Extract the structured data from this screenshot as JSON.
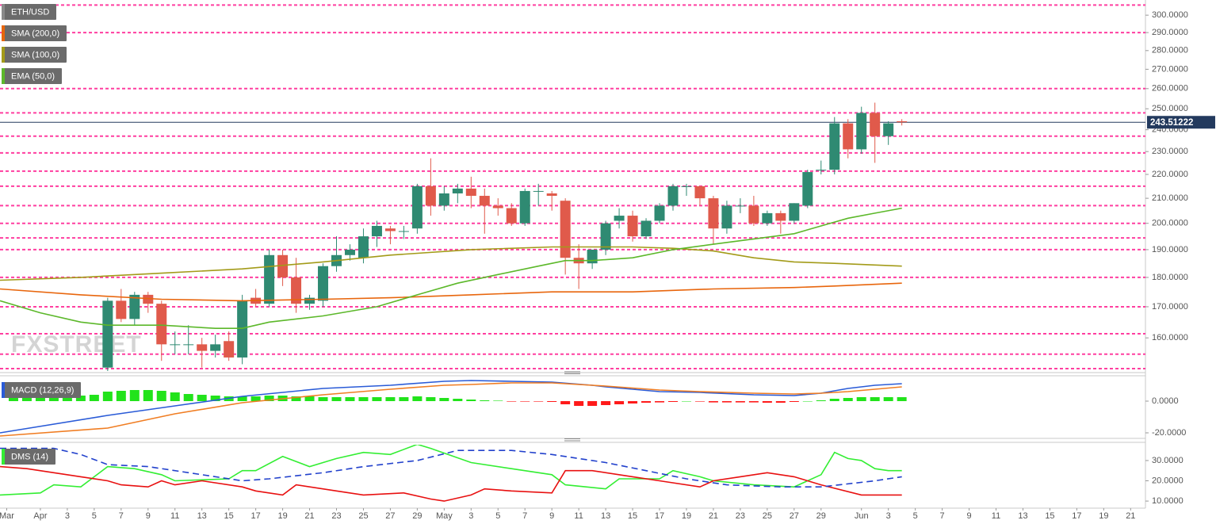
{
  "chart_data": [
    {
      "type": "candlestick",
      "name": "ETH/USD",
      "watermark": "FXSTREET",
      "log_scale": true,
      "ylim": [
        150,
        309
      ],
      "xlim": [
        -2,
        83.1
      ],
      "yticks": [
        {
          "value": 300,
          "label": "300.0000"
        },
        {
          "value": 290,
          "label": "290.0000"
        },
        {
          "value": 280,
          "label": "280.0000"
        },
        {
          "value": 270,
          "label": "270.0000"
        },
        {
          "value": 260,
          "label": "260.0000"
        },
        {
          "value": 250,
          "label": "250.0000"
        },
        {
          "value": 240,
          "label": "240.0000"
        },
        {
          "value": 230,
          "label": "230.0000"
        },
        {
          "value": 220,
          "label": "220.0000"
        },
        {
          "value": 210,
          "label": "210.0000"
        },
        {
          "value": 200,
          "label": "200.0000"
        },
        {
          "value": 190,
          "label": "190.0000"
        },
        {
          "value": 180,
          "label": "180.0000"
        },
        {
          "value": 170,
          "label": "170.0000"
        },
        {
          "value": 160,
          "label": "160.0000"
        }
      ],
      "up_color": "#2f8a72",
      "down_color": "#e05a4b",
      "x": [
        6,
        7,
        8,
        9,
        10,
        11,
        12,
        13,
        14,
        15,
        16,
        17,
        18,
        19,
        20,
        21,
        22,
        23,
        24,
        25,
        26,
        27,
        28,
        29,
        30,
        31,
        32,
        33,
        34,
        35,
        36,
        37,
        38,
        39,
        40,
        41,
        42,
        43,
        44,
        45,
        46,
        47,
        48,
        49,
        50,
        51,
        52,
        53,
        54,
        55,
        56,
        57,
        58,
        59,
        60,
        61,
        62,
        63,
        64,
        65
      ],
      "open": [
        151,
        172,
        166,
        174,
        171,
        158,
        158,
        158,
        156,
        159,
        154,
        173,
        171,
        188,
        180,
        171,
        172,
        184,
        188,
        187,
        195,
        198,
        197,
        198,
        215,
        207,
        212,
        214,
        211,
        207,
        206,
        200,
        213,
        212,
        209,
        187,
        185,
        190,
        201,
        203,
        195,
        201,
        207,
        215,
        215,
        210,
        198,
        207,
        207,
        200,
        204,
        201,
        207,
        222,
        222,
        243,
        231,
        248,
        237,
        244
      ],
      "high": [
        173,
        176,
        175,
        175,
        172,
        162,
        164,
        160,
        161,
        162,
        174,
        176,
        190,
        190,
        187,
        174,
        185,
        195,
        192,
        198,
        201,
        199,
        199,
        216,
        227,
        215,
        216,
        219,
        214,
        210,
        208,
        214,
        216,
        213,
        210,
        192,
        190,
        201,
        206,
        205,
        202,
        208,
        216,
        216,
        215,
        211,
        209,
        210,
        211,
        205,
        205,
        208,
        222,
        226,
        246,
        245,
        251,
        253,
        244,
        245
      ],
      "low": [
        150,
        165,
        164,
        168,
        153,
        155,
        155,
        151,
        154,
        153,
        152,
        170,
        170,
        177,
        168,
        169,
        170,
        182,
        186,
        185,
        191,
        192,
        194,
        196,
        203,
        205,
        208,
        206,
        196,
        203,
        199,
        199,
        207,
        205,
        181,
        176,
        183,
        188,
        198,
        193,
        194,
        200,
        205,
        211,
        207,
        192,
        196,
        204,
        199,
        199,
        196,
        200,
        206,
        220,
        220,
        227,
        229,
        225,
        233,
        242
      ],
      "close": [
        172,
        166,
        174,
        171,
        158,
        158,
        158,
        156,
        158,
        154,
        172,
        171,
        188,
        180,
        171,
        173,
        184,
        188,
        190,
        195,
        199,
        197,
        197,
        215,
        207,
        212,
        214,
        211,
        207,
        206,
        200,
        213,
        213,
        211,
        187,
        185,
        190,
        200,
        203,
        195,
        201,
        207,
        215,
        215,
        210,
        198,
        207,
        207,
        200,
        204,
        201,
        208,
        221,
        222,
        243,
        231,
        248,
        237,
        243,
        243.51222
      ],
      "last_price": 243.51222,
      "last_price_color": "#233a5e",
      "levels": [
        306,
        290,
        260,
        248,
        237,
        229.4,
        221.4,
        215,
        207,
        200,
        194.4,
        190,
        180,
        170,
        161.3,
        155,
        150.7
      ],
      "level_color": "#ff3fa0",
      "series": [
        {
          "name": "SMA (200,0)",
          "color": "#e8660d",
          "x": [
            -2,
            4,
            10,
            16,
            22,
            27,
            33,
            39,
            45,
            51,
            57,
            60,
            65
          ],
          "values": [
            176,
            174,
            172.5,
            172,
            172.5,
            173,
            174,
            175,
            175,
            176,
            176.5,
            177,
            178
          ]
        },
        {
          "name": "SMA (100,0)",
          "color": "#a39b19",
          "x": [
            -2,
            4,
            10,
            16,
            22,
            27,
            33,
            39,
            45,
            48,
            51,
            54,
            57,
            60,
            65
          ],
          "values": [
            179,
            180,
            181.5,
            183,
            185.5,
            188,
            190,
            191,
            191,
            190.5,
            189.5,
            187,
            185.5,
            185,
            184
          ]
        },
        {
          "name": "EMA (50,0)",
          "color": "#5cb82a",
          "x": [
            -2,
            1,
            4,
            6,
            10,
            14,
            16,
            18,
            22,
            26,
            29,
            32,
            35,
            38,
            40,
            42,
            45,
            48,
            51,
            54,
            57,
            59,
            61,
            63,
            65
          ],
          "values": [
            172,
            168,
            165,
            164,
            164,
            163,
            163,
            165,
            167,
            170,
            174,
            178,
            181,
            184,
            186,
            186,
            187,
            190,
            192,
            194,
            196,
            199,
            202,
            204,
            206
          ]
        }
      ]
    },
    {
      "type": "macd",
      "name": "MACD (12,26,9)",
      "ylim": [
        -22.5,
        14.5
      ],
      "xlim": [
        -2,
        83.1
      ],
      "yticks": [
        {
          "value": 0,
          "label": "0.0000"
        },
        {
          "value": -20,
          "label": "-20.0000"
        }
      ],
      "histogram": {
        "up_color": "#22e31b",
        "down_color": "#ff1a1a",
        "x": [
          -1,
          0,
          1,
          2,
          3,
          4,
          5,
          6,
          7,
          8,
          9,
          10,
          11,
          12,
          13,
          14,
          15,
          16,
          17,
          18,
          19,
          20,
          21,
          22,
          23,
          24,
          25,
          26,
          27,
          28,
          29,
          30,
          31,
          32,
          33,
          34,
          35,
          36,
          37,
          38,
          39,
          40,
          41,
          42,
          43,
          44,
          45,
          46,
          47,
          48,
          49,
          50,
          51,
          52,
          53,
          54,
          55,
          56,
          57,
          58,
          59,
          60,
          61,
          62,
          63,
          64,
          65
        ],
        "values": [
          3,
          3,
          3,
          3,
          3.5,
          3.5,
          4,
          6,
          6.5,
          7,
          7,
          6.5,
          5.5,
          4.5,
          4,
          3.5,
          3,
          3,
          3,
          3.5,
          3.5,
          3,
          3,
          2.5,
          2.5,
          2.5,
          2.5,
          2.5,
          2.5,
          2.5,
          3,
          2.5,
          2,
          1.5,
          1,
          0.5,
          0.3,
          -0.3,
          -0.3,
          -0.3,
          -0.5,
          -2,
          -3,
          -3,
          -2.5,
          -2,
          -1.5,
          -1,
          -0.8,
          -0.5,
          0,
          -0.3,
          -0.8,
          -0.8,
          -0.8,
          -0.8,
          -1,
          -1,
          -0.5,
          0,
          0.5,
          1.5,
          2,
          2.5,
          2.5,
          2.5,
          2.5
        ]
      },
      "series": [
        {
          "color": "#2a5bd7",
          "x": [
            -2,
            6,
            11,
            16,
            22,
            27,
            31,
            33,
            36,
            39,
            42,
            43,
            47,
            50,
            54,
            57,
            59,
            61,
            63,
            65
          ],
          "values": [
            -20,
            -9,
            -3,
            3,
            8,
            10,
            12.5,
            13,
            12.5,
            12,
            10,
            9,
            6,
            5.5,
            4,
            3.5,
            5,
            8,
            10,
            11
          ]
        },
        {
          "color": "#f07d22",
          "x": [
            -2,
            6,
            11,
            16,
            22,
            27,
            31,
            33,
            36,
            39,
            42,
            43,
            47,
            50,
            54,
            57,
            59,
            61,
            63,
            65
          ],
          "values": [
            -22,
            -17,
            -8,
            -1,
            4,
            7.5,
            10,
            10.5,
            11.5,
            11.5,
            10,
            9.5,
            7,
            6,
            5,
            4.5,
            5,
            6,
            7.5,
            9
          ]
        }
      ]
    },
    {
      "type": "line",
      "name": "DMS (14)",
      "ylim": [
        6.9,
        37.8
      ],
      "xlim": [
        -2,
        83.1
      ],
      "yticks": [
        {
          "value": 30,
          "label": "30.0000"
        },
        {
          "value": 20,
          "label": "20.0000"
        },
        {
          "value": 10,
          "label": "10.0000"
        }
      ],
      "xticks": [
        {
          "value": -1.5,
          "label": "Mar"
        },
        {
          "value": 1,
          "label": "Apr"
        },
        {
          "value": 3,
          "label": "3"
        },
        {
          "value": 5,
          "label": "5"
        },
        {
          "value": 7,
          "label": "7"
        },
        {
          "value": 9,
          "label": "9"
        },
        {
          "value": 11,
          "label": "11"
        },
        {
          "value": 13,
          "label": "13"
        },
        {
          "value": 15,
          "label": "15"
        },
        {
          "value": 17,
          "label": "17"
        },
        {
          "value": 19,
          "label": "19"
        },
        {
          "value": 21,
          "label": "21"
        },
        {
          "value": 23,
          "label": "23"
        },
        {
          "value": 25,
          "label": "25"
        },
        {
          "value": 27,
          "label": "27"
        },
        {
          "value": 29,
          "label": "29"
        },
        {
          "value": 31,
          "label": "May"
        },
        {
          "value": 33,
          "label": "3"
        },
        {
          "value": 35,
          "label": "5"
        },
        {
          "value": 37,
          "label": "7"
        },
        {
          "value": 39,
          "label": "9"
        },
        {
          "value": 41,
          "label": "11"
        },
        {
          "value": 43,
          "label": "13"
        },
        {
          "value": 45,
          "label": "15"
        },
        {
          "value": 47,
          "label": "17"
        },
        {
          "value": 49,
          "label": "19"
        },
        {
          "value": 51,
          "label": "21"
        },
        {
          "value": 53,
          "label": "23"
        },
        {
          "value": 55,
          "label": "25"
        },
        {
          "value": 57,
          "label": "27"
        },
        {
          "value": 59,
          "label": "29"
        },
        {
          "value": 62,
          "label": "Jun"
        },
        {
          "value": 64,
          "label": "3"
        },
        {
          "value": 66,
          "label": "5"
        },
        {
          "value": 68,
          "label": "7"
        },
        {
          "value": 70,
          "label": "9"
        },
        {
          "value": 72,
          "label": "11"
        },
        {
          "value": 74,
          "label": "13"
        },
        {
          "value": 76,
          "label": "15"
        },
        {
          "value": 78,
          "label": "17"
        },
        {
          "value": 80,
          "label": "19"
        },
        {
          "value": 82,
          "label": "21"
        }
      ],
      "series": [
        {
          "color": "#33ee33",
          "x": [
            -2,
            1,
            2,
            4,
            6,
            8,
            10,
            11,
            15,
            16,
            17,
            19,
            21,
            23,
            25,
            27,
            29,
            30,
            33,
            36,
            39,
            40,
            43,
            44,
            47,
            48,
            50,
            51,
            54,
            57,
            59,
            60,
            61,
            62,
            63,
            64,
            65
          ],
          "values": [
            13,
            14,
            18,
            17,
            27,
            26,
            23,
            20,
            21,
            25,
            25,
            32,
            27,
            31,
            34,
            33,
            38,
            36,
            29,
            26,
            23,
            18,
            16,
            21,
            21,
            25,
            22,
            20,
            18,
            17,
            23,
            34,
            31,
            30,
            26,
            25,
            25
          ]
        },
        {
          "color": "#e81010",
          "x": [
            -2,
            0,
            2,
            4,
            6,
            7,
            9,
            10,
            11,
            13,
            16,
            17,
            19,
            20,
            23,
            25,
            28,
            30,
            31,
            33,
            34,
            36,
            39,
            40,
            42,
            45,
            47,
            50,
            51,
            53,
            55,
            57,
            59,
            62,
            65
          ],
          "values": [
            27,
            26,
            24,
            22,
            20,
            18,
            17,
            20,
            18,
            20,
            17,
            15,
            13,
            18,
            15,
            13,
            14,
            11,
            10,
            13,
            16,
            15,
            14,
            25,
            25,
            22,
            20,
            17,
            20,
            22,
            24,
            22,
            18,
            13,
            13
          ]
        },
        {
          "color": "#2241cc",
          "dashed": true,
          "x": [
            -2,
            2,
            4,
            6,
            9,
            13,
            16,
            18,
            22,
            25,
            29,
            32,
            36,
            39,
            43,
            46,
            49,
            52,
            56,
            59,
            63,
            65
          ],
          "values": [
            36,
            36,
            33,
            28,
            27,
            23,
            20,
            21,
            24,
            27,
            30,
            35,
            35,
            33,
            29,
            25,
            21,
            18,
            17,
            17,
            20,
            22
          ]
        }
      ]
    }
  ]
}
